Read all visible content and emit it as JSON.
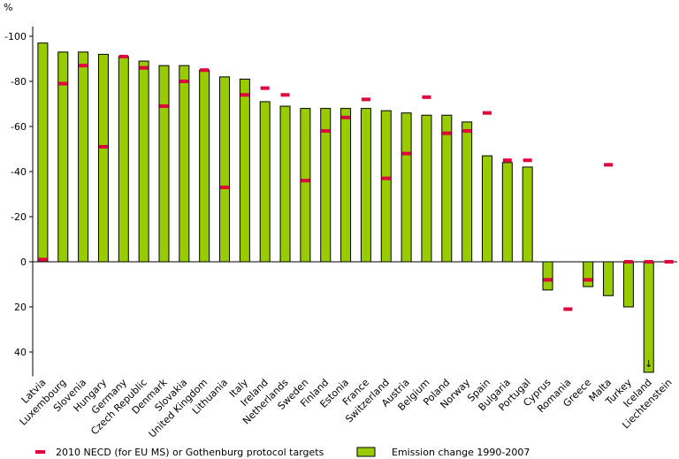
{
  "chart_data": {
    "type": "bar",
    "title": "",
    "xlabel": "",
    "ylabel": "%",
    "ylim": [
      50,
      -100
    ],
    "y_axis_reversed": true,
    "yticks": [
      "-100",
      "-80",
      "-60",
      "-40",
      "-20",
      "0",
      "20",
      "40"
    ],
    "grid": false,
    "legend_position": "bottom",
    "colors": {
      "bar_fill": "#99cc00",
      "bar_stroke": "#000000",
      "target": "#e0003c"
    },
    "categories": [
      "Latvia",
      "Luxembourg",
      "Slovenia",
      "Hungary",
      "Germany",
      "Czech Republic",
      "Denmark",
      "Slovakia",
      "United Kingdom",
      "Lithuania",
      "Italy",
      "Ireland",
      "Netherlands",
      "Sweden",
      "Finland",
      "Estonia",
      "France",
      "Switzerland",
      "Austria",
      "Belgium",
      "Poland",
      "Norway",
      "Spain",
      "Bulgaria",
      "Portugal",
      "Cyprus",
      "Romania",
      "Greece",
      "Malta",
      "Turkey",
      "Iceland",
      "Liechtenstein"
    ],
    "series": [
      {
        "name": "Emission change 1990-2007",
        "marker": "bar",
        "values": [
          -97,
          -93,
          -93,
          -92,
          -91,
          -89,
          -87,
          -87,
          -85,
          -82,
          -81,
          -71,
          -69,
          -68,
          -68,
          -68,
          -68,
          -67,
          -66,
          -65,
          -65,
          -62,
          -47,
          -44,
          -42,
          12.5,
          0,
          11,
          15,
          20,
          49,
          0
        ]
      },
      {
        "name": "2010 NECD (for EU MS) or Gothenburg protocol targets",
        "marker": "dash",
        "values": [
          -1,
          -79,
          -87,
          -51,
          -91,
          -86,
          -69,
          -80,
          -85,
          -33,
          -74,
          -77,
          -74,
          -36,
          -58,
          -64,
          -72,
          -37,
          -48,
          -73,
          -57,
          -58,
          -66,
          -45,
          -45,
          8,
          21,
          8,
          -43,
          0,
          0,
          0
        ]
      }
    ],
    "annotations": [
      {
        "category": "Iceland",
        "symbol": "↓"
      }
    ]
  }
}
